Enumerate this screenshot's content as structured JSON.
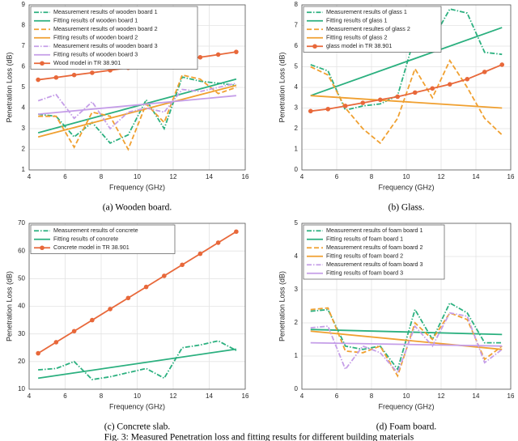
{
  "figure_caption": "Fig. 3: Measured Penetration loss and fitting results for different building materials",
  "chart_data": [
    {
      "type": "line",
      "caption": "(a) Wooden board.",
      "xlabel": "Frequency (GHz)",
      "ylabel": "Penetration Loss (dB)",
      "xlim": [
        4,
        16
      ],
      "xticks": [
        4,
        6,
        8,
        10,
        12,
        14,
        16
      ],
      "ylim": [
        1,
        9
      ],
      "yticks": [
        1,
        2,
        3,
        4,
        5,
        6,
        7,
        8,
        9
      ],
      "grid": true,
      "legend": "upper left",
      "series": [
        {
          "name": "Measurement results of wooden board 1",
          "color": "#2bb07f",
          "style": "dashdot",
          "x": [
            4.5,
            5.5,
            6.5,
            7.5,
            8.5,
            9.5,
            10.5,
            11.5,
            12.5,
            13.5,
            14.5,
            15.5
          ],
          "values": [
            3.7,
            3.6,
            2.6,
            3.3,
            2.3,
            2.7,
            4.4,
            3.0,
            5.5,
            5.3,
            5.2,
            5.1
          ]
        },
        {
          "name": "Fitting results of wooden board 1",
          "color": "#2bb07f",
          "style": "solid",
          "x": [
            4.5,
            15.5
          ],
          "values": [
            2.8,
            5.4
          ]
        },
        {
          "name": "Measurement results of wooden board 2",
          "color": "#f0a030",
          "style": "dashed",
          "x": [
            4.5,
            5.5,
            6.5,
            7.5,
            8.5,
            9.5,
            10.5,
            11.5,
            12.5,
            13.5,
            14.5,
            15.5
          ],
          "values": [
            3.6,
            3.6,
            2.1,
            3.8,
            3.6,
            2.0,
            4.2,
            3.3,
            5.6,
            5.4,
            4.7,
            5.0
          ]
        },
        {
          "name": "Fitting results of wooden board 2",
          "color": "#f0a030",
          "style": "solid",
          "x": [
            4.5,
            15.5
          ],
          "values": [
            2.6,
            5.1
          ]
        },
        {
          "name": "Measurement results of wooden board 3",
          "color": "#c59ee8",
          "style": "dashdot",
          "x": [
            4.5,
            5.5,
            6.5,
            7.5,
            8.5,
            9.5,
            10.5,
            11.5,
            12.5,
            13.5,
            14.5,
            15.5
          ],
          "values": [
            4.35,
            4.65,
            3.5,
            4.3,
            3.0,
            3.8,
            4.0,
            3.8,
            4.9,
            4.8,
            5.0,
            5.2
          ]
        },
        {
          "name": "Fitting results of wooden board 3",
          "color": "#c59ee8",
          "style": "solid",
          "x": [
            4.5,
            15.5
          ],
          "values": [
            3.7,
            4.6
          ]
        },
        {
          "name": "Wood model in TR 38.901",
          "color": "#e8683a",
          "style": "solid",
          "marker": true,
          "x": [
            4.5,
            5.5,
            6.5,
            7.5,
            8.5,
            9.5,
            10.5,
            11.5,
            12.5,
            13.5,
            14.5,
            15.5
          ],
          "values": [
            5.37,
            5.48,
            5.6,
            5.71,
            5.83,
            5.95,
            6.07,
            6.2,
            6.33,
            6.46,
            6.59,
            6.72
          ]
        }
      ]
    },
    {
      "type": "line",
      "caption": "(b) Glass.",
      "xlabel": "Frequency (GHz)",
      "ylabel": "Penetration Loss (dB)",
      "xlim": [
        4,
        16
      ],
      "xticks": [
        4,
        6,
        8,
        10,
        12,
        14,
        16
      ],
      "ylim": [
        0,
        8
      ],
      "yticks": [
        0,
        1,
        2,
        3,
        4,
        5,
        6,
        7,
        8
      ],
      "grid": true,
      "legend": "upper left",
      "series": [
        {
          "name": "Measurement results of glass 1",
          "color": "#2bb07f",
          "style": "dashdot",
          "x": [
            4.5,
            5.5,
            6.5,
            7.5,
            8.5,
            9.5,
            10.5,
            11.5,
            12.5,
            13.5,
            14.5,
            15.5
          ],
          "values": [
            5.1,
            4.8,
            2.9,
            3.1,
            3.2,
            3.6,
            6.5,
            6.3,
            7.8,
            7.6,
            5.7,
            5.6
          ]
        },
        {
          "name": "Fitting results of glass 1",
          "color": "#2bb07f",
          "style": "solid",
          "x": [
            4.5,
            15.5
          ],
          "values": [
            3.6,
            6.9
          ]
        },
        {
          "name": "Measurement resultes of glass 2",
          "color": "#f0a030",
          "style": "dashed",
          "x": [
            4.5,
            5.5,
            6.5,
            7.5,
            8.5,
            9.5,
            10.5,
            11.5,
            12.5,
            13.5,
            14.5,
            15.5
          ],
          "values": [
            5.0,
            4.6,
            3.0,
            2.0,
            1.3,
            2.5,
            4.9,
            3.5,
            5.3,
            4.0,
            2.5,
            1.7
          ]
        },
        {
          "name": "Fitting results of glass 2",
          "color": "#f0a030",
          "style": "solid",
          "x": [
            4.5,
            15.5
          ],
          "values": [
            3.6,
            3.0
          ]
        },
        {
          "name": "glass model in TR 38.901",
          "color": "#e8683a",
          "style": "solid",
          "marker": true,
          "x": [
            4.5,
            5.5,
            6.5,
            7.5,
            8.5,
            9.5,
            10.5,
            11.5,
            12.5,
            13.5,
            14.5,
            15.5
          ],
          "values": [
            2.85,
            2.95,
            3.1,
            3.25,
            3.4,
            3.55,
            3.75,
            3.95,
            4.15,
            4.4,
            4.75,
            5.1
          ]
        }
      ]
    },
    {
      "type": "line",
      "caption": "(c) Concrete slab.",
      "xlabel": "Frequency (GHz)",
      "ylabel": "Penetration Loss (dB)",
      "xlim": [
        4,
        16
      ],
      "xticks": [
        4,
        6,
        8,
        10,
        12,
        14,
        16
      ],
      "ylim": [
        10,
        70
      ],
      "yticks": [
        10,
        20,
        30,
        40,
        50,
        60,
        70
      ],
      "grid": true,
      "legend": "upper left",
      "series": [
        {
          "name": "Measurement results of concrete",
          "color": "#2bb07f",
          "style": "dashdot",
          "x": [
            4.5,
            5.5,
            6.5,
            7.5,
            8.5,
            9.5,
            10.5,
            11.5,
            12.5,
            13.5,
            14.5,
            15.5
          ],
          "values": [
            17,
            17.5,
            20,
            13.5,
            14.5,
            16,
            17.5,
            14,
            25,
            26,
            27.5,
            24
          ]
        },
        {
          "name": "Fitting results of concrete",
          "color": "#2bb07f",
          "style": "solid",
          "x": [
            4.5,
            15.5
          ],
          "values": [
            14,
            24.5
          ]
        },
        {
          "name": "Concrete model in TR 38.901",
          "color": "#e8683a",
          "style": "solid",
          "marker": true,
          "x": [
            4.5,
            5.5,
            6.5,
            7.5,
            8.5,
            9.5,
            10.5,
            11.5,
            12.5,
            13.5,
            14.5,
            15.5
          ],
          "values": [
            23,
            27,
            31,
            35,
            39,
            43,
            47,
            51,
            55,
            59,
            63,
            67
          ]
        }
      ]
    },
    {
      "type": "line",
      "caption": "(d) Foam board.",
      "xlabel": "Frequency (GHz)",
      "ylabel": "Penetration Loss (dB)",
      "xlim": [
        4,
        16
      ],
      "xticks": [
        4,
        6,
        8,
        10,
        12,
        14,
        16
      ],
      "ylim": [
        0,
        5
      ],
      "yticks": [
        0,
        1,
        2,
        3,
        4,
        5
      ],
      "grid": true,
      "legend": "upper left",
      "series": [
        {
          "name": "Measurement results of foam board 1",
          "color": "#2bb07f",
          "style": "dashdot",
          "x": [
            4.5,
            5.5,
            6.5,
            7.5,
            8.5,
            9.5,
            10.5,
            11.5,
            12.5,
            13.5,
            14.5,
            15.5
          ],
          "values": [
            2.35,
            2.4,
            1.3,
            1.2,
            1.3,
            0.6,
            2.4,
            1.5,
            2.6,
            2.3,
            1.4,
            1.4
          ]
        },
        {
          "name": "Fitting results of foam board 1",
          "color": "#2bb07f",
          "style": "solid",
          "x": [
            4.5,
            15.5
          ],
          "values": [
            1.8,
            1.65
          ]
        },
        {
          "name": "Measurement results of foam board 2",
          "color": "#f0a030",
          "style": "dashed",
          "x": [
            4.5,
            5.5,
            6.5,
            7.5,
            8.5,
            9.5,
            10.5,
            11.5,
            12.5,
            13.5,
            14.5,
            15.5
          ],
          "values": [
            2.4,
            2.45,
            1.15,
            1.1,
            1.3,
            0.4,
            2.0,
            1.5,
            2.3,
            2.1,
            0.9,
            1.3
          ]
        },
        {
          "name": "Fitting results of foam board 2",
          "color": "#f0a030",
          "style": "solid",
          "x": [
            4.5,
            15.5
          ],
          "values": [
            1.75,
            1.2
          ]
        },
        {
          "name": "Measurement results of foam board 3",
          "color": "#c59ee8",
          "style": "dashdot",
          "x": [
            4.5,
            5.5,
            6.5,
            7.5,
            8.5,
            9.5,
            10.5,
            11.5,
            12.5,
            13.5,
            14.5,
            15.5
          ],
          "values": [
            1.85,
            1.9,
            0.6,
            1.3,
            1.1,
            0.5,
            1.9,
            1.3,
            2.3,
            2.2,
            0.8,
            1.2
          ]
        },
        {
          "name": "Fitting results of foam board 3",
          "color": "#c59ee8",
          "style": "solid",
          "x": [
            4.5,
            15.5
          ],
          "values": [
            1.4,
            1.3
          ]
        }
      ]
    }
  ]
}
